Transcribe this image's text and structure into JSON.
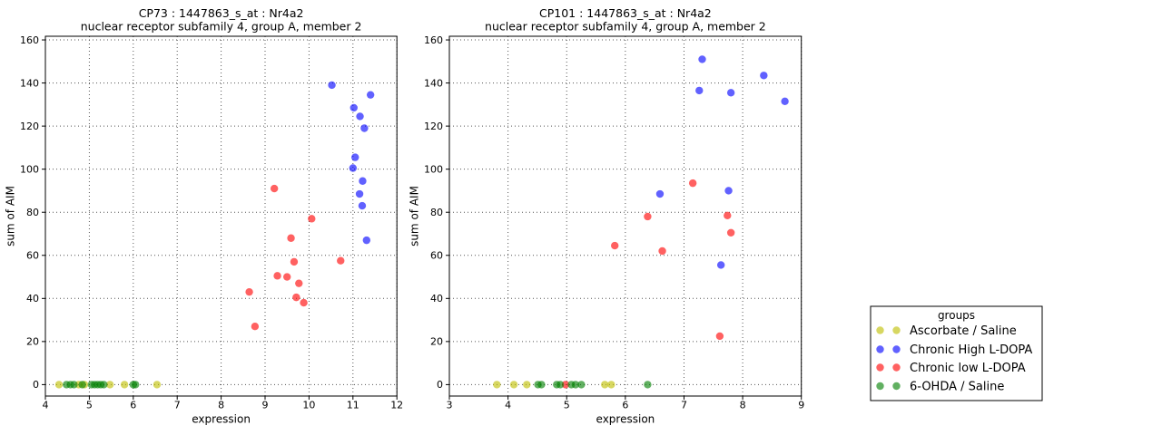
{
  "figure": {
    "background": "#ffffff",
    "legend": {
      "title": "groups",
      "entries": [
        {
          "label": "Ascorbate / Saline",
          "color": "#bfbf00",
          "fill_on_white": "#d8d866"
        },
        {
          "label": "Chronic High L-DOPA",
          "color": "#0000ff",
          "fill_on_white": "#6666ff"
        },
        {
          "label": "Chronic low L-DOPA",
          "color": "#ff0000",
          "fill_on_white": "#ff6666"
        },
        {
          "label": "6-OHDA / Saline",
          "color": "#008000",
          "fill_on_white": "#66b366"
        }
      ]
    }
  },
  "chart_data": [
    {
      "type": "scatter",
      "title": "CP73 : 1447863_s_at : Nr4a2",
      "subtitle": "nuclear receptor subfamily 4, group A, member 2",
      "xlabel": "expression",
      "ylabel": "sum of AIM",
      "xlim": [
        4,
        12
      ],
      "ylim": [
        -5.3,
        161.7
      ],
      "xticks": [
        4,
        5,
        6,
        7,
        8,
        9,
        10,
        11,
        12
      ],
      "yticks": [
        0,
        20,
        40,
        60,
        80,
        100,
        120,
        140,
        160
      ],
      "grid": true,
      "legend_position": "outside-right",
      "series": [
        {
          "name": "Ascorbate / Saline",
          "points": [
            [
              4.31,
              0
            ],
            [
              4.76,
              0
            ],
            [
              4.89,
              0
            ],
            [
              5.47,
              0
            ],
            [
              5.8,
              0
            ],
            [
              6.54,
              0
            ]
          ]
        },
        {
          "name": "Chronic High L-DOPA",
          "points": [
            [
              10.52,
              139
            ],
            [
              11.4,
              134.5
            ],
            [
              11.02,
              128.5
            ],
            [
              11.16,
              124.5
            ],
            [
              11.26,
              119
            ],
            [
              11.05,
              105.5
            ],
            [
              11.0,
              100.5
            ],
            [
              11.22,
              94.5
            ],
            [
              11.15,
              88.5
            ],
            [
              11.21,
              83
            ],
            [
              11.31,
              67
            ]
          ]
        },
        {
          "name": "Chronic low L-DOPA",
          "points": [
            [
              9.21,
              91
            ],
            [
              10.06,
              77
            ],
            [
              9.59,
              68
            ],
            [
              10.72,
              57.5
            ],
            [
              9.66,
              57
            ],
            [
              9.28,
              50.5
            ],
            [
              9.5,
              50
            ],
            [
              9.77,
              47
            ],
            [
              8.64,
              43
            ],
            [
              9.71,
              40.5
            ],
            [
              9.88,
              38
            ],
            [
              8.77,
              27
            ]
          ]
        },
        {
          "name": "6-OHDA / Saline",
          "points": [
            [
              4.48,
              0
            ],
            [
              4.57,
              0
            ],
            [
              4.65,
              0
            ],
            [
              4.84,
              0
            ],
            [
              5.05,
              0
            ],
            [
              5.12,
              0
            ],
            [
              5.19,
              0
            ],
            [
              5.26,
              0
            ],
            [
              5.33,
              0
            ],
            [
              6.0,
              0
            ],
            [
              6.05,
              0
            ]
          ]
        }
      ]
    },
    {
      "type": "scatter",
      "title": "CP101 : 1447863_s_at : Nr4a2",
      "subtitle": "nuclear receptor subfamily 4, group A, member 2",
      "xlabel": "expression",
      "ylabel": "sum of AIM",
      "xlim": [
        3,
        9
      ],
      "ylim": [
        -5.3,
        161.7
      ],
      "xticks": [
        3,
        4,
        5,
        6,
        7,
        8,
        9
      ],
      "yticks": [
        0,
        20,
        40,
        60,
        80,
        100,
        120,
        140,
        160
      ],
      "grid": true,
      "legend_position": "outside-right",
      "series": [
        {
          "name": "Ascorbate / Saline",
          "points": [
            [
              3.81,
              0
            ],
            [
              4.1,
              0
            ],
            [
              4.32,
              0
            ],
            [
              5.65,
              0
            ],
            [
              5.76,
              0
            ]
          ]
        },
        {
          "name": "Chronic High L-DOPA",
          "points": [
            [
              7.31,
              151
            ],
            [
              8.36,
              143.5
            ],
            [
              7.26,
              136.5
            ],
            [
              7.8,
              135.5
            ],
            [
              8.72,
              131.5
            ],
            [
              7.76,
              90
            ],
            [
              6.59,
              88.5
            ],
            [
              7.63,
              55.5
            ]
          ]
        },
        {
          "name": "Chronic low L-DOPA",
          "points": [
            [
              7.15,
              93.5
            ],
            [
              7.74,
              78.5
            ],
            [
              6.38,
              78
            ],
            [
              7.8,
              70.5
            ],
            [
              5.82,
              64.5
            ],
            [
              6.63,
              62
            ],
            [
              7.61,
              22.5
            ],
            [
              4.98,
              0
            ]
          ]
        },
        {
          "name": "6-OHDA / Saline",
          "points": [
            [
              4.51,
              0
            ],
            [
              4.57,
              0
            ],
            [
              4.83,
              0
            ],
            [
              4.89,
              0
            ],
            [
              5.08,
              0
            ],
            [
              5.15,
              0
            ],
            [
              5.25,
              0
            ],
            [
              6.38,
              0
            ]
          ]
        }
      ]
    }
  ]
}
